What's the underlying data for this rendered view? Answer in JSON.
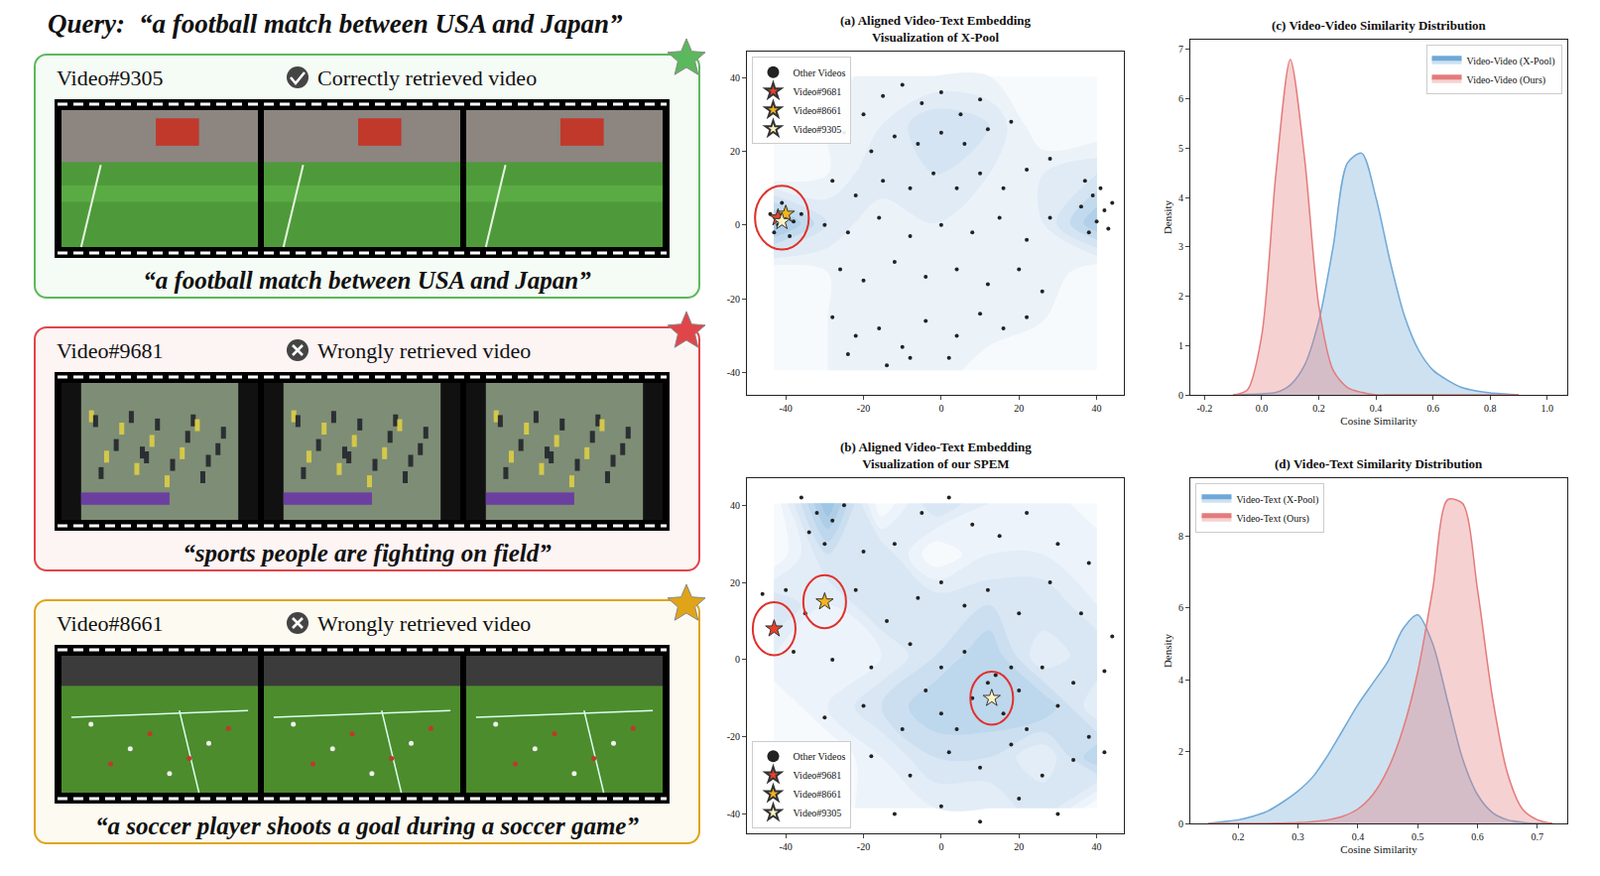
{
  "query": {
    "label": "Query:",
    "text": "“a football match between USA and Japan”"
  },
  "videos": [
    {
      "id": "Video#9305",
      "result": "Correctly retrieved video",
      "correct": true,
      "color": "#5cb85c",
      "caption": "“a football match between USA and Japan”"
    },
    {
      "id": "Video#9681",
      "result": "Wrongly retrieved video",
      "correct": false,
      "color": "#e0454a",
      "caption": "“sports people are fighting on field”"
    },
    {
      "id": "Video#8661",
      "result": "Wrongly retrieved video",
      "correct": false,
      "color": "#e0a418",
      "caption": "“a soccer player shoots a goal during a soccer game”"
    }
  ],
  "chart_data": [
    {
      "type": "scatter",
      "title": "(a) Aligned Video-Text Embedding Visualization of X-Pool",
      "xlim": [
        -50,
        47
      ],
      "xticks": [
        -40,
        -20,
        0,
        20,
        40
      ],
      "ylim": [
        -46,
        47
      ],
      "yticks": [
        -40,
        -20,
        0,
        20,
        40
      ],
      "grid": false,
      "legend": "upper left",
      "series": [
        {
          "name": "Other Videos",
          "color": "#222222",
          "marker": "dot",
          "x": [
            -44,
            -42,
            -40,
            -38,
            -43,
            -39,
            -36,
            -41,
            -20,
            -15,
            -10,
            -5,
            0,
            5,
            10,
            -25,
            -18,
            -12,
            -6,
            0,
            6,
            12,
            18,
            -28,
            -22,
            -15,
            -8,
            -2,
            4,
            10,
            16,
            22,
            28,
            -30,
            -24,
            -16,
            -8,
            0,
            8,
            15,
            22,
            28,
            -26,
            -20,
            -12,
            -4,
            4,
            12,
            20,
            26,
            -28,
            -22,
            -16,
            -10,
            -4,
            4,
            10,
            16,
            -24,
            -14,
            -8,
            2,
            22,
            36,
            39,
            42,
            40,
            38,
            44,
            41,
            37,
            43
          ],
          "y": [
            3,
            0,
            4,
            1,
            -2,
            -3,
            3,
            6,
            30,
            35,
            38,
            33,
            36,
            30,
            34,
            25,
            20,
            24,
            22,
            25,
            22,
            26,
            28,
            12,
            8,
            12,
            10,
            14,
            10,
            14,
            10,
            15,
            18,
            0,
            -2,
            2,
            -3,
            0,
            -2,
            2,
            -4,
            2,
            -12,
            -15,
            -10,
            -14,
            -12,
            -16,
            -12,
            -18,
            -25,
            -30,
            -28,
            -33,
            -26,
            -30,
            -24,
            -28,
            -35,
            -38,
            -36,
            -36,
            -25,
            5,
            8,
            4,
            1,
            -2,
            6,
            10,
            12,
            -1
          ]
        },
        {
          "name": "Video#9681",
          "color": "#e8412c",
          "marker": "star",
          "x": [
            -42
          ],
          "y": [
            2
          ]
        },
        {
          "name": "Video#8661",
          "color": "#f2b51e",
          "marker": "star",
          "x": [
            -40
          ],
          "y": [
            3
          ]
        },
        {
          "name": "Video#9305",
          "color": "#fff3c4",
          "marker": "star",
          "x": [
            -41
          ],
          "y": [
            1
          ]
        }
      ]
    },
    {
      "type": "scatter",
      "title": "(b) Aligned Video-Text Embedding Visualization of our SPEM",
      "xlim": [
        -50,
        47
      ],
      "xticks": [
        -40,
        -20,
        0,
        20,
        40
      ],
      "ylim": [
        -45,
        47
      ],
      "yticks": [
        -40,
        -20,
        0,
        20,
        40
      ],
      "grid": false,
      "legend": "lower left",
      "series": [
        {
          "name": "Other Videos",
          "color": "#222222",
          "marker": "dot",
          "x": [
            -36,
            -32,
            -28,
            -34,
            -30,
            -25,
            -20,
            -12,
            -5,
            2,
            8,
            15,
            22,
            30,
            38,
            -40,
            -46,
            -35,
            -22,
            -14,
            -6,
            0,
            6,
            12,
            20,
            28,
            36,
            44,
            -38,
            -28,
            -18,
            -8,
            0,
            6,
            14,
            20,
            26,
            34,
            42,
            -30,
            -20,
            -10,
            0,
            8,
            16,
            22,
            30,
            38,
            -18,
            -8,
            2,
            10,
            18,
            26,
            34,
            -12,
            0,
            10,
            20,
            30,
            42,
            12,
            4,
            -4,
            18
          ],
          "y": [
            42,
            38,
            36,
            33,
            30,
            40,
            28,
            30,
            38,
            42,
            35,
            32,
            38,
            30,
            25,
            18,
            17,
            12,
            18,
            10,
            16,
            20,
            14,
            18,
            12,
            20,
            12,
            6,
            2,
            0,
            -2,
            4,
            -2,
            2,
            -4,
            -8,
            -2,
            -6,
            -3,
            -15,
            -12,
            -18,
            -14,
            -10,
            -14,
            -18,
            -12,
            -20,
            -25,
            -30,
            -24,
            -28,
            -22,
            -30,
            -26,
            -40,
            -38,
            -42,
            -36,
            -40,
            -24,
            -6,
            -18,
            -8,
            -2
          ]
        },
        {
          "name": "Video#9681",
          "color": "#e8412c",
          "marker": "star",
          "x": [
            -43
          ],
          "y": [
            8
          ]
        },
        {
          "name": "Video#8661",
          "color": "#f2b51e",
          "marker": "star",
          "x": [
            -30
          ],
          "y": [
            15
          ]
        },
        {
          "name": "Video#9305",
          "color": "#fff3c4",
          "marker": "star",
          "x": [
            13
          ],
          "y": [
            -10
          ]
        }
      ]
    },
    {
      "type": "line",
      "title": "(c) Video-Video Similarity Distribution",
      "x_label": "Cosine Similarity",
      "y_label": "Density",
      "xlim": [
        -0.25,
        1.07
      ],
      "xticks": [
        {
          "value": -0.2,
          "label": "-0.2"
        },
        {
          "value": 0,
          "label": "0.0"
        },
        {
          "value": 0.2,
          "label": "0.2"
        },
        {
          "value": 0.4,
          "label": "0.4"
        },
        {
          "value": 0.6,
          "label": "0.6"
        },
        {
          "value": 0.8,
          "label": "0.8"
        },
        {
          "value": 1,
          "label": "1.0"
        }
      ],
      "ylim": [
        0,
        7.2
      ],
      "yticks": [
        0,
        1,
        2,
        3,
        4,
        5,
        6,
        7
      ],
      "grid": false,
      "legend": "upper right",
      "x": [
        -0.1,
        -0.05,
        0,
        0.05,
        0.1,
        0.15,
        0.2,
        0.25,
        0.3,
        0.35,
        0.4,
        0.45,
        0.5,
        0.55,
        0.6,
        0.65,
        0.7,
        0.75,
        0.8,
        0.85,
        0.9
      ],
      "series": [
        {
          "name": "Video-Video (X-Pool)",
          "color": "#6fa8d6",
          "values": [
            0,
            0.01,
            0.02,
            0.05,
            0.2,
            0.6,
            1.5,
            3.0,
            4.7,
            4.9,
            4.0,
            2.7,
            1.6,
            0.9,
            0.5,
            0.3,
            0.15,
            0.08,
            0.04,
            0.02,
            0
          ]
        },
        {
          "name": "Video-Video (Ours)",
          "color": "#e47b7b",
          "values": [
            0,
            0.1,
            1.2,
            4.5,
            6.8,
            4.8,
            1.8,
            0.5,
            0.15,
            0.05,
            0,
            0,
            0,
            0,
            0,
            0,
            0,
            0,
            0,
            0,
            0
          ]
        }
      ]
    },
    {
      "type": "line",
      "title": "(d) Video-Text Similarity Distribution",
      "x_label": "Cosine Similarity",
      "y_label": "Density",
      "xlim": [
        0.12,
        0.75
      ],
      "xticks": [
        0.2,
        0.3,
        0.4,
        0.5,
        0.6,
        0.7
      ],
      "ylim": [
        0,
        9.6
      ],
      "yticks": [
        0,
        2,
        4,
        6,
        8
      ],
      "grid": false,
      "legend": "upper left",
      "x": [
        0.15,
        0.175,
        0.2,
        0.225,
        0.25,
        0.275,
        0.3,
        0.325,
        0.35,
        0.375,
        0.4,
        0.425,
        0.45,
        0.475,
        0.5,
        0.525,
        0.55,
        0.575,
        0.6,
        0.625,
        0.65,
        0.675,
        0.7,
        0.725
      ],
      "series": [
        {
          "name": "Video-Text (X-Pool)",
          "color": "#6fa8d6",
          "values": [
            0,
            0.05,
            0.1,
            0.2,
            0.35,
            0.6,
            0.9,
            1.3,
            1.9,
            2.6,
            3.3,
            3.9,
            4.5,
            5.4,
            5.8,
            5.0,
            3.4,
            1.8,
            0.8,
            0.3,
            0.1,
            0.03,
            0,
            0
          ]
        },
        {
          "name": "Video-Text (Ours)",
          "color": "#e47b7b",
          "values": [
            0,
            0,
            0,
            0,
            0,
            0.01,
            0.02,
            0.05,
            0.1,
            0.2,
            0.4,
            0.8,
            1.5,
            2.6,
            4.2,
            6.5,
            9.0,
            8.9,
            6.5,
            3.5,
            1.4,
            0.4,
            0.1,
            0
          ]
        }
      ]
    }
  ]
}
